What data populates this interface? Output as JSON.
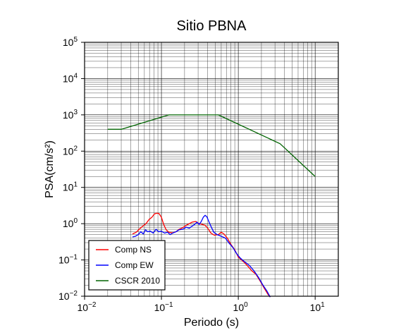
{
  "chart_data": {
    "type": "line",
    "title": "Sitio PBNA",
    "xlabel": "Periodo (s)",
    "ylabel": "PSA(cm/s²)",
    "x_scale": "log",
    "y_scale": "log",
    "xlim": [
      0.01,
      20
    ],
    "ylim": [
      0.01,
      100000
    ],
    "grid": true,
    "legend_position": "bottom-left",
    "x_ticks": [
      {
        "value": 0.01,
        "base": "10",
        "exp": "−2"
      },
      {
        "value": 0.1,
        "base": "10",
        "exp": "−1"
      },
      {
        "value": 1,
        "base": "10",
        "exp": "0"
      },
      {
        "value": 10,
        "base": "10",
        "exp": "1"
      }
    ],
    "y_ticks": [
      {
        "value": 0.01,
        "base": "10",
        "exp": "−2"
      },
      {
        "value": 0.1,
        "base": "10",
        "exp": "−1"
      },
      {
        "value": 1,
        "base": "10",
        "exp": "0"
      },
      {
        "value": 10,
        "base": "10",
        "exp": "1"
      },
      {
        "value": 100,
        "base": "10",
        "exp": "2"
      },
      {
        "value": 1000,
        "base": "10",
        "exp": "3"
      },
      {
        "value": 10000,
        "base": "10",
        "exp": "4"
      },
      {
        "value": 100000,
        "base": "10",
        "exp": "5"
      }
    ],
    "series": [
      {
        "name": "Comp NS",
        "color": "#ff0000",
        "points": [
          [
            0.042,
            0.52
          ],
          [
            0.047,
            0.58
          ],
          [
            0.052,
            0.72
          ],
          [
            0.057,
            0.85
          ],
          [
            0.063,
            1.0
          ],
          [
            0.069,
            1.3
          ],
          [
            0.075,
            1.5
          ],
          [
            0.081,
            1.85
          ],
          [
            0.087,
            1.95
          ],
          [
            0.093,
            1.9
          ],
          [
            0.1,
            1.5
          ],
          [
            0.107,
            0.95
          ],
          [
            0.115,
            0.68
          ],
          [
            0.125,
            0.58
          ],
          [
            0.14,
            0.56
          ],
          [
            0.155,
            0.6
          ],
          [
            0.17,
            0.7
          ],
          [
            0.19,
            0.78
          ],
          [
            0.21,
            0.9
          ],
          [
            0.23,
            1.0
          ],
          [
            0.25,
            1.1
          ],
          [
            0.28,
            1.15
          ],
          [
            0.31,
            1.0
          ],
          [
            0.34,
            0.95
          ],
          [
            0.37,
            0.9
          ],
          [
            0.4,
            0.75
          ],
          [
            0.44,
            0.55
          ],
          [
            0.49,
            0.48
          ],
          [
            0.55,
            0.5
          ],
          [
            0.6,
            0.58
          ],
          [
            0.65,
            0.52
          ],
          [
            0.72,
            0.4
          ],
          [
            0.8,
            0.27
          ],
          [
            0.9,
            0.19
          ],
          [
            1.0,
            0.12
          ],
          [
            1.2,
            0.085
          ],
          [
            1.35,
            0.065
          ],
          [
            1.5,
            0.05
          ],
          [
            1.7,
            0.04
          ],
          [
            1.95,
            0.025
          ],
          [
            2.2,
            0.016
          ],
          [
            2.45,
            0.011
          ],
          [
            2.6,
            0.0095
          ]
        ]
      },
      {
        "name": "Comp EW",
        "color": "#0000ff",
        "points": [
          [
            0.042,
            0.43
          ],
          [
            0.046,
            0.45
          ],
          [
            0.05,
            0.5
          ],
          [
            0.054,
            0.6
          ],
          [
            0.058,
            0.52
          ],
          [
            0.062,
            0.68
          ],
          [
            0.066,
            0.6
          ],
          [
            0.072,
            0.62
          ],
          [
            0.078,
            0.55
          ],
          [
            0.085,
            0.7
          ],
          [
            0.092,
            0.6
          ],
          [
            0.1,
            0.62
          ],
          [
            0.11,
            0.55
          ],
          [
            0.12,
            0.58
          ],
          [
            0.13,
            0.5
          ],
          [
            0.14,
            0.55
          ],
          [
            0.155,
            0.6
          ],
          [
            0.17,
            0.68
          ],
          [
            0.19,
            0.7
          ],
          [
            0.21,
            0.8
          ],
          [
            0.23,
            0.75
          ],
          [
            0.25,
            0.85
          ],
          [
            0.27,
            0.95
          ],
          [
            0.29,
            1.1
          ],
          [
            0.31,
            0.95
          ],
          [
            0.33,
            1.15
          ],
          [
            0.35,
            1.5
          ],
          [
            0.37,
            1.7
          ],
          [
            0.39,
            1.55
          ],
          [
            0.41,
            1.2
          ],
          [
            0.44,
            0.85
          ],
          [
            0.48,
            0.58
          ],
          [
            0.53,
            0.5
          ],
          [
            0.6,
            0.45
          ],
          [
            0.68,
            0.4
          ],
          [
            0.75,
            0.3
          ],
          [
            0.85,
            0.22
          ],
          [
            0.95,
            0.15
          ],
          [
            1.05,
            0.115
          ],
          [
            1.2,
            0.09
          ],
          [
            1.4,
            0.07
          ],
          [
            1.6,
            0.05
          ],
          [
            1.85,
            0.032
          ],
          [
            2.1,
            0.02
          ],
          [
            2.35,
            0.014
          ],
          [
            2.6,
            0.0095
          ]
        ]
      },
      {
        "name": "CSCR 2010",
        "color": "#006400",
        "points": [
          [
            0.02,
            400
          ],
          [
            0.03,
            400
          ],
          [
            0.125,
            1000
          ],
          [
            0.55,
            1000
          ],
          [
            3.5,
            160
          ],
          [
            10.0,
            20
          ]
        ]
      }
    ]
  }
}
